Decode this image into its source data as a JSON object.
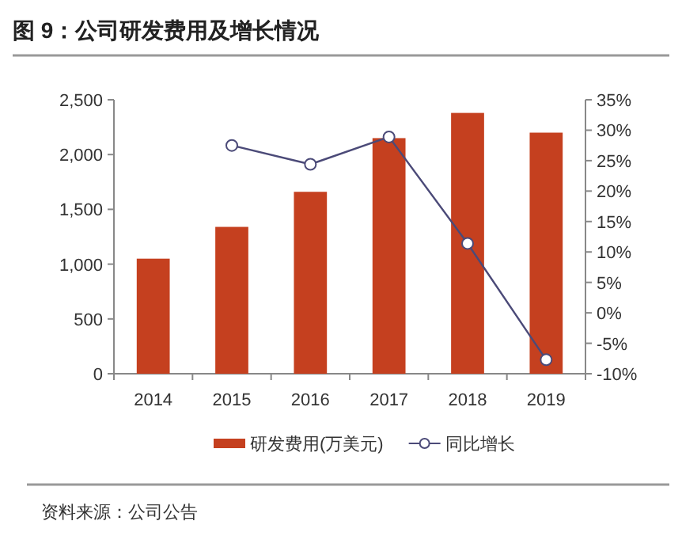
{
  "chart_data": {
    "type": "bar",
    "title": "图 9：公司研发费用及增长情况",
    "categories": [
      "2014",
      "2015",
      "2016",
      "2017",
      "2018",
      "2019"
    ],
    "series": [
      {
        "name": "研发费用(万美元)",
        "color": "#c5401f",
        "values": [
          1050,
          1340,
          1660,
          2150,
          2380,
          2200
        ]
      },
      {
        "name": "同比增长",
        "type": "line",
        "axis": "y2",
        "color": "#4b4a78",
        "marker": "circle",
        "values": [
          null,
          27.5,
          24.4,
          28.9,
          11.4,
          -7.7
        ]
      }
    ],
    "ylim": [
      0,
      2500
    ],
    "yticks": [
      {
        "value": 0,
        "label": "0"
      },
      {
        "value": 500,
        "label": "500"
      },
      {
        "value": 1000,
        "label": "1,000"
      },
      {
        "value": 1500,
        "label": "1,500"
      },
      {
        "value": 2000,
        "label": "2,000"
      },
      {
        "value": 2500,
        "label": "2,500"
      }
    ],
    "y2lim": [
      -10,
      35
    ],
    "y2ticks": [
      {
        "value": -10,
        "label": "-10%"
      },
      {
        "value": -5,
        "label": "-5%"
      },
      {
        "value": 0,
        "label": "0%"
      },
      {
        "value": 5,
        "label": "5%"
      },
      {
        "value": 10,
        "label": "10%"
      },
      {
        "value": 15,
        "label": "15%"
      },
      {
        "value": 20,
        "label": "20%"
      },
      {
        "value": 25,
        "label": "25%"
      },
      {
        "value": 30,
        "label": "30%"
      },
      {
        "value": 35,
        "label": "35%"
      }
    ],
    "legend": "bottom",
    "grid": false,
    "annotations": [
      "资料来源：公司公告"
    ]
  }
}
